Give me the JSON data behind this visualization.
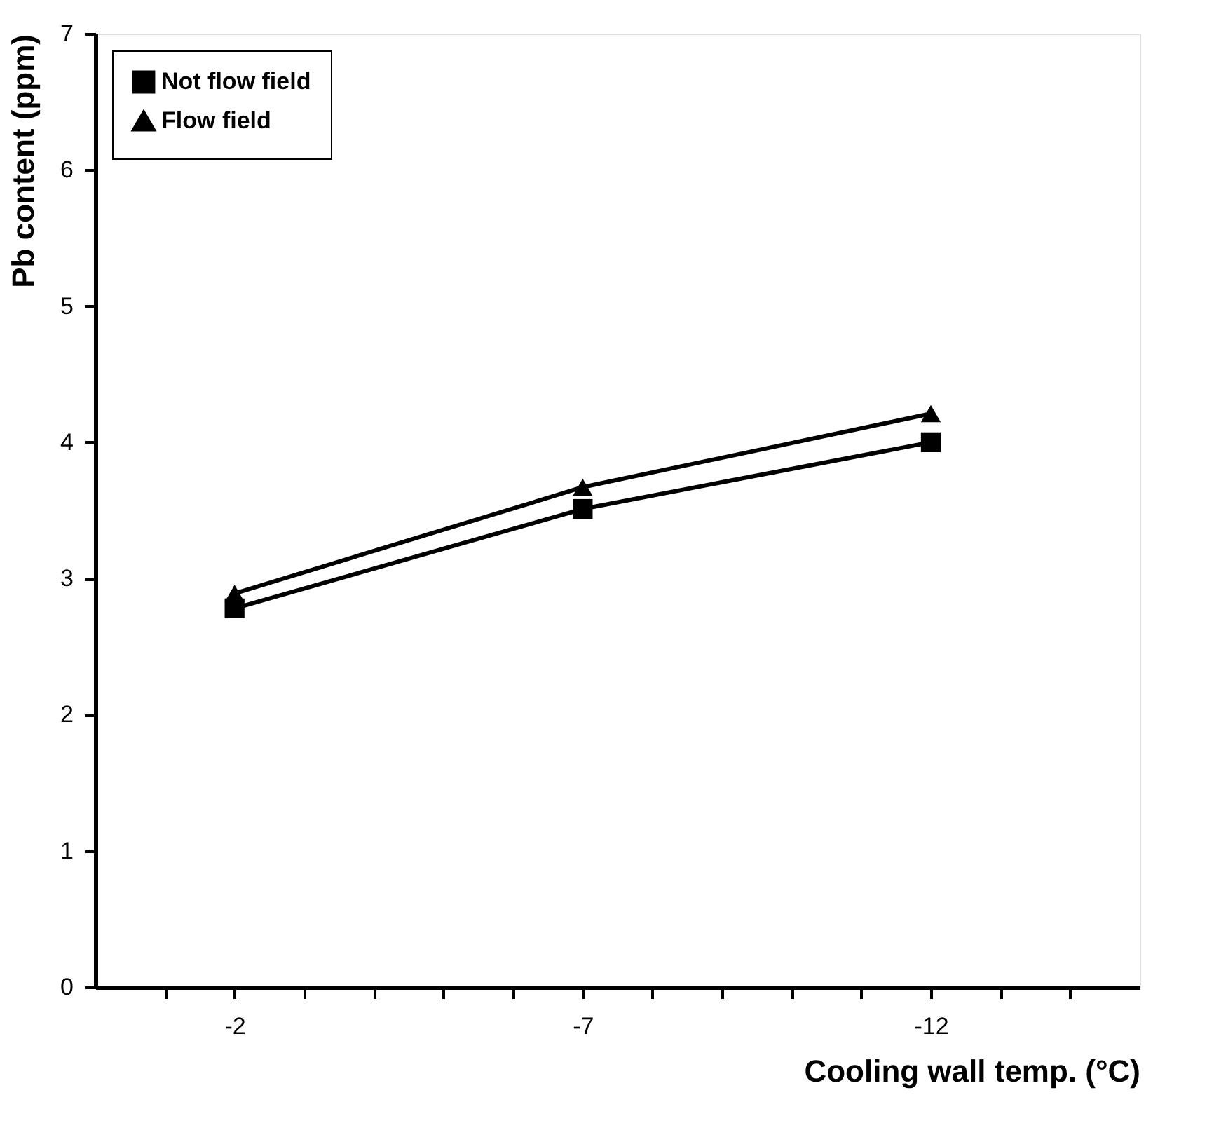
{
  "chart_data": {
    "type": "line",
    "xlabel": "Cooling wall temp. (°C)",
    "ylabel": "Pb content (ppm)",
    "x": [
      -2,
      -7,
      -12
    ],
    "xlim": [
      0,
      -15
    ],
    "xticks": [
      {
        "value": -1,
        "label": null
      },
      -2,
      {
        "value": -3,
        "label": null
      },
      {
        "value": -4,
        "label": null
      },
      {
        "value": -5,
        "label": null
      },
      {
        "value": -6,
        "label": null
      },
      -7,
      {
        "value": -8,
        "label": null
      },
      {
        "value": -9,
        "label": null
      },
      {
        "value": -10,
        "label": null
      },
      {
        "value": -11,
        "label": null
      },
      -12,
      {
        "value": -13,
        "label": null
      },
      {
        "value": -14,
        "label": null
      }
    ],
    "ylim": [
      0,
      7
    ],
    "yticks": [
      0,
      1,
      2,
      3,
      4,
      5,
      6,
      7
    ],
    "series": [
      {
        "name": "Not flow field",
        "color": "#000000",
        "marker": "square",
        "values": [
          2.78,
          3.51,
          4.0
        ]
      },
      {
        "name": "Flow field",
        "color": "#000000",
        "marker": "triangle",
        "values": [
          2.89,
          3.67,
          4.21
        ]
      }
    ],
    "legend": "top left",
    "grid": false,
    "line_style": "solid"
  }
}
